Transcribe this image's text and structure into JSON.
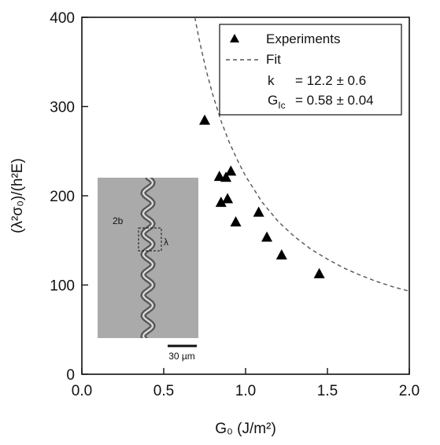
{
  "chart_data": {
    "type": "scatter",
    "xlabel": "G₀ (J/m²)",
    "ylabel": "(λ²σ₀)/(h²E)",
    "xlim": [
      0.0,
      2.0
    ],
    "ylim": [
      0,
      400
    ],
    "x_ticks": [
      "0.0",
      "0.5",
      "1.0",
      "1.5",
      "2.0"
    ],
    "y_ticks": [
      "0",
      "100",
      "200",
      "300",
      "400"
    ],
    "x_tick_values": [
      0.0,
      0.5,
      1.0,
      1.5,
      2.0
    ],
    "y_tick_values": [
      0,
      100,
      200,
      300,
      400
    ],
    "grid": false,
    "legend_position": "top-right",
    "series": [
      {
        "name": "Experiments",
        "marker": "triangle",
        "color": "#000000",
        "x": [
          0.75,
          0.84,
          0.85,
          0.88,
          0.89,
          0.91,
          0.94,
          1.08,
          1.13,
          1.22,
          1.45
        ],
        "y": [
          284,
          221,
          192,
          220,
          196,
          227,
          170,
          181,
          153,
          133,
          112
        ]
      },
      {
        "name": "Fit",
        "style": "dashed",
        "color": "#555555",
        "x": [
          0.69,
          0.72,
          0.76,
          0.8,
          0.85,
          0.9,
          0.95,
          1.0,
          1.1,
          1.2,
          1.3,
          1.4,
          1.5,
          1.6,
          1.7,
          1.8,
          1.9,
          2.0
        ],
        "y": [
          400,
          372,
          340,
          313,
          284,
          260,
          240,
          222,
          193,
          171,
          154,
          140,
          129,
          119,
          111,
          104,
          98,
          93
        ]
      }
    ],
    "legend": {
      "experiments_label": "Experiments",
      "fit_label": "Fit",
      "k_label": "k",
      "k_value": "= 12.2 ± 0.6",
      "g_label": "G",
      "g_sub": "Ic",
      "g_value": "= 0.58 ± 0.04"
    },
    "inset": {
      "label_2b": "2b",
      "label_lambda": "λ",
      "scale_bar": "30 µm",
      "background_color": "#aaaaaa"
    }
  }
}
